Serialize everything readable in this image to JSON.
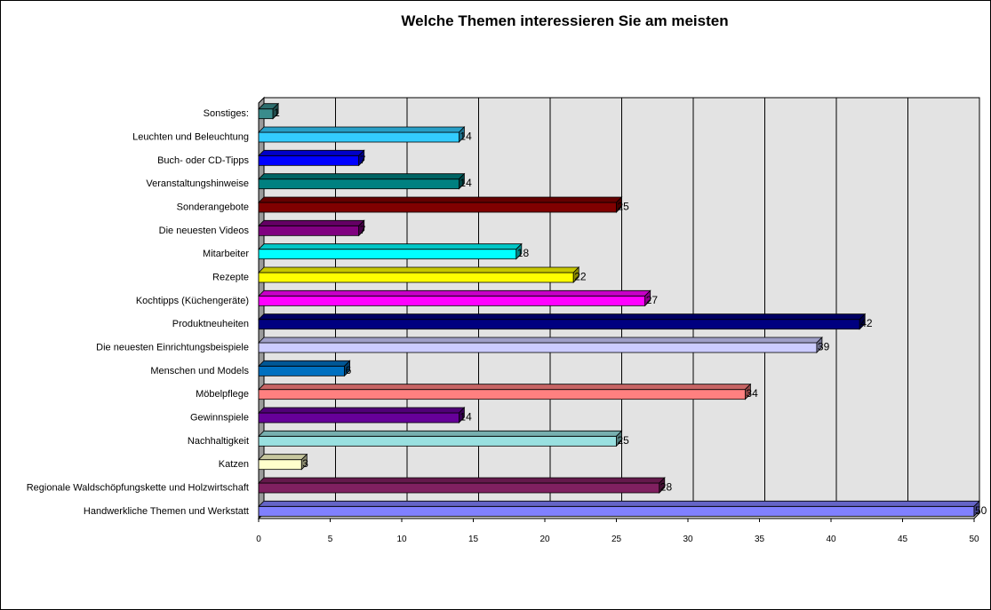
{
  "chart_data": {
    "type": "bar",
    "orientation": "horizontal",
    "style": "3d",
    "title": "Welche Themen interessieren Sie am meisten",
    "categories": [
      "Sonstiges:",
      "Leuchten und Beleuchtung",
      "Buch- oder CD-Tipps",
      "Veranstaltungshinweise",
      "Sonderangebote",
      "Die neuesten Videos",
      "Mitarbeiter",
      "Rezepte",
      "Kochtipps (Küchengeräte)",
      "Produktneuheiten",
      "Die neuesten Einrichtungsbeispiele",
      "Menschen und Models",
      "Möbelpflege",
      "Gewinnspiele",
      "Nachhaltigkeit",
      "Katzen",
      "Regionale Waldschöpfungskette und Holzwirtschaft",
      "Handwerkliche Themen und Werkstatt"
    ],
    "values": [
      1,
      14,
      7,
      14,
      25,
      7,
      18,
      22,
      27,
      42,
      39,
      6,
      34,
      14,
      25,
      3,
      28,
      50
    ],
    "colors": [
      "#3a8c8c",
      "#33ccff",
      "#0000ff",
      "#008080",
      "#800000",
      "#800080",
      "#00ffff",
      "#ffff00",
      "#ff00ff",
      "#000080",
      "#ccccff",
      "#0070c0",
      "#ff8080",
      "#660099",
      "#99e0e0",
      "#ffffcc",
      "#802060",
      "#8080ff"
    ],
    "xlim": [
      0,
      50
    ],
    "xticks": [
      0,
      5,
      10,
      15,
      20,
      25,
      30,
      35,
      40,
      45,
      50
    ],
    "grid": true,
    "legend": "none"
  }
}
